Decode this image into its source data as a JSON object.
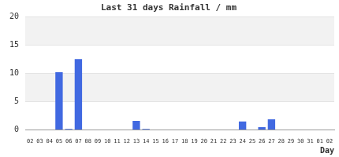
{
  "chart_data": {
    "type": "bar",
    "title": "Last 31 days Rainfall / mm",
    "x_label": "Day",
    "categories": [
      "02",
      "03",
      "04",
      "05",
      "06",
      "07",
      "08",
      "09",
      "10",
      "11",
      "12",
      "13",
      "14",
      "15",
      "16",
      "17",
      "18",
      "19",
      "20",
      "21",
      "22",
      "23",
      "24",
      "25",
      "26",
      "27",
      "28",
      "29",
      "30",
      "31",
      "01",
      "02"
    ],
    "values": [
      0,
      0,
      0,
      10.2,
      0.2,
      12.5,
      0,
      0,
      0,
      0,
      0,
      1.6,
      0.2,
      0,
      0,
      0,
      0,
      0,
      0,
      0,
      0,
      0,
      1.5,
      0,
      0.5,
      1.9,
      0,
      0,
      0,
      0,
      0,
      0
    ],
    "color": "#4169e1",
    "ylim": [
      0,
      20
    ],
    "yticks": [
      0,
      5,
      10,
      15,
      20
    ],
    "grid": true
  }
}
